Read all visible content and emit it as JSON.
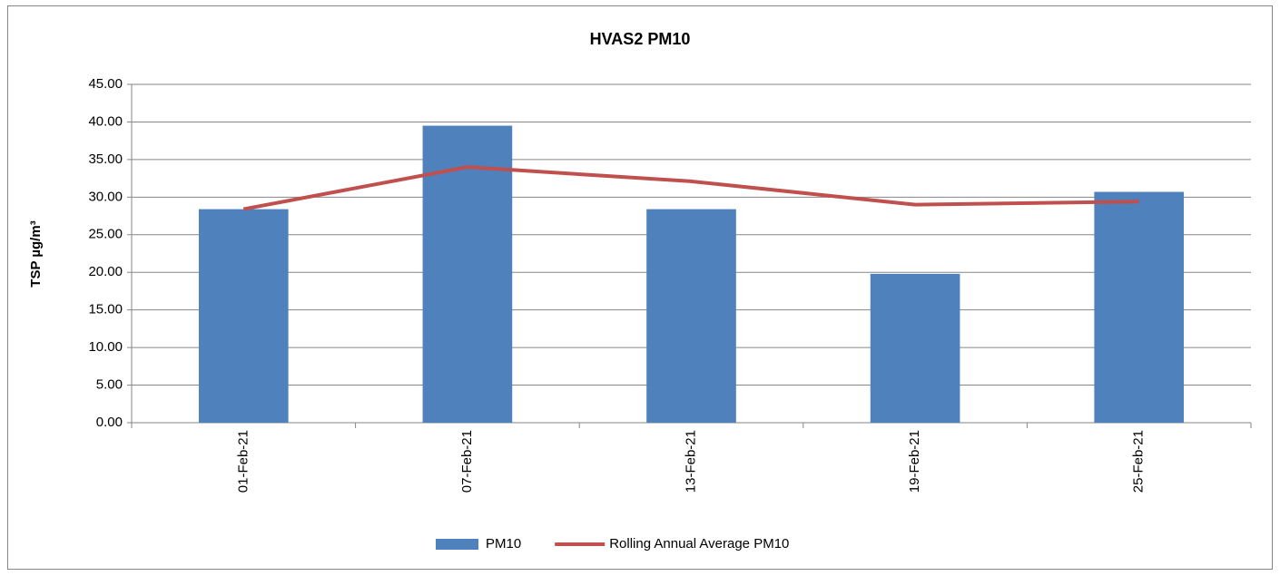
{
  "chart_data": {
    "type": "bar",
    "title": "HVAS2 PM10",
    "ylabel": "TSP µg/m³",
    "categories": [
      "01-Feb-21",
      "07-Feb-21",
      "13-Feb-21",
      "19-Feb-21",
      "25-Feb-21"
    ],
    "series": [
      {
        "name": "PM10",
        "type": "bar",
        "color": "#4f81bd",
        "values": [
          28.4,
          39.5,
          28.4,
          19.8,
          30.7
        ]
      },
      {
        "name": "Rolling Annual Average PM10",
        "type": "line",
        "color": "#c0504d",
        "values": [
          28.4,
          34.0,
          32.1,
          29.0,
          29.4
        ]
      }
    ],
    "ylim": [
      0,
      45
    ],
    "yticks": [
      {
        "value": 0,
        "label": "0.00"
      },
      {
        "value": 5,
        "label": "5.00"
      },
      {
        "value": 10,
        "label": "10.00"
      },
      {
        "value": 15,
        "label": "15.00"
      },
      {
        "value": 20,
        "label": "20.00"
      },
      {
        "value": 25,
        "label": "25.00"
      },
      {
        "value": 30,
        "label": "30.00"
      },
      {
        "value": 35,
        "label": "35.00"
      },
      {
        "value": 40,
        "label": "40.00"
      },
      {
        "value": 45,
        "label": "45.00"
      }
    ],
    "grid": true,
    "legend": "bottom"
  }
}
